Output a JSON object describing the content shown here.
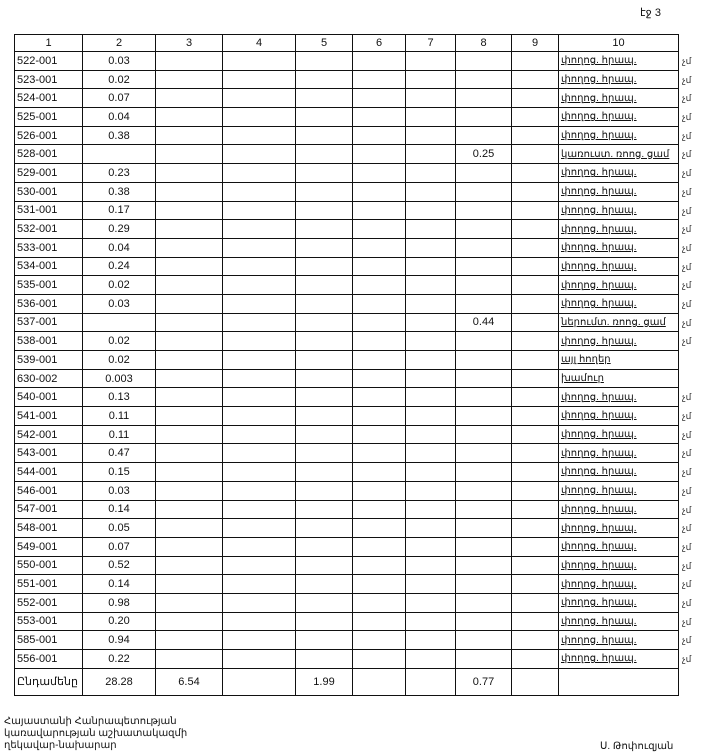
{
  "page_label": "էջ 3",
  "table": {
    "headers": [
      "1",
      "2",
      "3",
      "4",
      "5",
      "6",
      "7",
      "8",
      "9",
      "10"
    ],
    "rows": [
      {
        "c1": "522-001",
        "c2": "0.03",
        "c8": "",
        "c10": "փողոց. հրապ.",
        "mark": "չմ"
      },
      {
        "c1": "523-001",
        "c2": "0.02",
        "c8": "",
        "c10": "փողոց. հրապ.",
        "mark": "չմ"
      },
      {
        "c1": "524-001",
        "c2": "0.07",
        "c8": "",
        "c10": "փողոց. հրապ.",
        "mark": "չմ"
      },
      {
        "c1": "525-001",
        "c2": "0.04",
        "c8": "",
        "c10": "փողոց. հրապ.",
        "mark": "չմ"
      },
      {
        "c1": "526-001",
        "c2": "0.38",
        "c8": "",
        "c10": "փողոց. հրապ.",
        "mark": "չմ"
      },
      {
        "c1": "528-001",
        "c2": "",
        "c8": "0.25",
        "c10": "կառուստ. ռոոց. ցամ",
        "mark": "չմ"
      },
      {
        "c1": "529-001",
        "c2": "0.23",
        "c8": "",
        "c10": "փողոց. հրապ.",
        "mark": "չմ"
      },
      {
        "c1": "530-001",
        "c2": "0.38",
        "c8": "",
        "c10": "փողոց. հրապ.",
        "mark": "չմ"
      },
      {
        "c1": "531-001",
        "c2": "0.17",
        "c8": "",
        "c10": "փողոց. հրապ.",
        "mark": "չմ"
      },
      {
        "c1": "532-001",
        "c2": "0.29",
        "c8": "",
        "c10": "փողոց. հրապ.",
        "mark": "չմ"
      },
      {
        "c1": "533-001",
        "c2": "0.04",
        "c8": "",
        "c10": "փողոց. հրապ.",
        "mark": "չմ"
      },
      {
        "c1": "534-001",
        "c2": "0.24",
        "c8": "",
        "c10": "փողոց. հրապ.",
        "mark": "չմ"
      },
      {
        "c1": "535-001",
        "c2": "0.02",
        "c8": "",
        "c10": "փողոց. հրապ.",
        "mark": "չմ"
      },
      {
        "c1": "536-001",
        "c2": "0.03",
        "c8": "",
        "c10": "փողոց. հրապ.",
        "mark": "չմ"
      },
      {
        "c1": "537-001",
        "c2": "",
        "c8": "0.44",
        "c10": "ներումտ. ռոոց. ցամ",
        "mark": "չմ"
      },
      {
        "c1": "538-001",
        "c2": "0.02",
        "c8": "",
        "c10": "փողոց. հրապ.",
        "mark": "չմ"
      },
      {
        "c1": "539-001",
        "c2": "0.02",
        "c8": "",
        "c10": "այլ հողեր",
        "mark": ""
      },
      {
        "c1": "630-002",
        "c2": "0.003",
        "c8": "",
        "c10": "խամուր",
        "mark": ""
      },
      {
        "c1": "540-001",
        "c2": "0.13",
        "c8": "",
        "c10": "փողոց. հրապ.",
        "mark": "չմ"
      },
      {
        "c1": "541-001",
        "c2": "0.11",
        "c8": "",
        "c10": "փողոց. հրապ.",
        "mark": "չմ"
      },
      {
        "c1": "542-001",
        "c2": "0.11",
        "c8": "",
        "c10": "փողոց. հրապ.",
        "mark": "չմ"
      },
      {
        "c1": "543-001",
        "c2": "0.47",
        "c8": "",
        "c10": "փողոց. հրապ.",
        "mark": "չմ"
      },
      {
        "c1": "544-001",
        "c2": "0.15",
        "c8": "",
        "c10": "փողոց. հրապ.",
        "mark": "չմ"
      },
      {
        "c1": "546-001",
        "c2": "0.03",
        "c8": "",
        "c10": "փողոց. հրապ.",
        "mark": "չմ"
      },
      {
        "c1": "547-001",
        "c2": "0.14",
        "c8": "",
        "c10": "փողոց. հրապ.",
        "mark": "չմ"
      },
      {
        "c1": "548-001",
        "c2": "0.05",
        "c8": "",
        "c10": "փողոց. հրապ.",
        "mark": "չմ"
      },
      {
        "c1": "549-001",
        "c2": "0.07",
        "c8": "",
        "c10": "փողոց. հրապ.",
        "mark": "չմ"
      },
      {
        "c1": "550-001",
        "c2": "0.52",
        "c8": "",
        "c10": "փողոց. հրապ.",
        "mark": "չմ"
      },
      {
        "c1": "551-001",
        "c2": "0.14",
        "c8": "",
        "c10": "փողոց. հրապ.",
        "mark": "չմ"
      },
      {
        "c1": "552-001",
        "c2": "0.98",
        "c8": "",
        "c10": "փողոց. հրապ.",
        "mark": "չմ"
      },
      {
        "c1": "553-001",
        "c2": "0.20",
        "c8": "",
        "c10": "փողոց. հրապ.",
        "mark": "չմ"
      },
      {
        "c1": "585-001",
        "c2": "0.94",
        "c8": "",
        "c10": "փողոց. հրապ.",
        "mark": "չմ"
      },
      {
        "c1": "556-001",
        "c2": "0.22",
        "c8": "",
        "c10": "փողոց. հրապ.",
        "mark": "չմ"
      }
    ],
    "total": {
      "label": "Ընդամենը",
      "c2": "28.28",
      "c3": "6.54",
      "c5": "1.99",
      "c8": "0.77"
    }
  },
  "footer": {
    "line1": "Հայաստանի Հանրապետության",
    "line2": "կառավարության աշխատակազմի",
    "line3": "ղեկավար-նախարար",
    "signatory": "Ս. Թոփուզյան"
  }
}
